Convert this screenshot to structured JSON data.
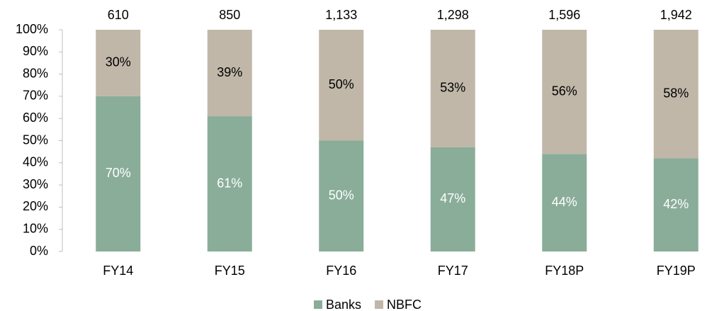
{
  "chart_data": {
    "type": "bar",
    "stacked": true,
    "categories": [
      "FY14",
      "FY15",
      "FY16",
      "FY17",
      "FY18P",
      "FY19P"
    ],
    "series": [
      {
        "name": "Banks",
        "color": "#8aad9a",
        "label_color": "#ffffff",
        "values": [
          70,
          61,
          50,
          47,
          44,
          42
        ],
        "value_labels": [
          "70%",
          "61%",
          "50%",
          "47%",
          "44%",
          "42%"
        ]
      },
      {
        "name": "NBFC",
        "color": "#c0b7a9",
        "label_color": "#000000",
        "values": [
          30,
          39,
          50,
          53,
          56,
          58
        ],
        "value_labels": [
          "30%",
          "39%",
          "50%",
          "53%",
          "56%",
          "58%"
        ]
      }
    ],
    "totals": [
      {
        "value": 610,
        "label": "610"
      },
      {
        "value": 850,
        "label": "850"
      },
      {
        "value": 1133,
        "label": "1,133"
      },
      {
        "value": 1298,
        "label": "1,298"
      },
      {
        "value": 1596,
        "label": "1,596"
      },
      {
        "value": 1942,
        "label": "1,942"
      }
    ],
    "ylim": [
      0,
      100
    ],
    "yticks": [
      {
        "value": 0,
        "label": "0%"
      },
      {
        "value": 10,
        "label": "10%"
      },
      {
        "value": 20,
        "label": "20%"
      },
      {
        "value": 30,
        "label": "30%"
      },
      {
        "value": 40,
        "label": "40%"
      },
      {
        "value": 50,
        "label": "50%"
      },
      {
        "value": 60,
        "label": "60%"
      },
      {
        "value": 70,
        "label": "70%"
      },
      {
        "value": 80,
        "label": "80%"
      },
      {
        "value": 90,
        "label": "90%"
      },
      {
        "value": 100,
        "label": "100%"
      }
    ],
    "grid": false,
    "legend": "bottom"
  }
}
